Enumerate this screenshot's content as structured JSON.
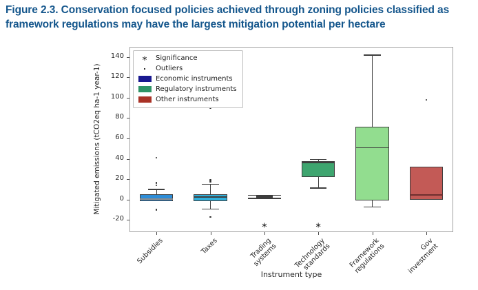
{
  "chart_data": {
    "type": "boxplot",
    "title": "Figure 2.3. Conservation focused policies achieved through zoning policies classified as framework regulations may have the largest mitigation potential per hectare",
    "title_color": "#14568c",
    "xlabel": "Instrument type",
    "ylabel": "Mitigated emissions (tCO2eq ha-1 year-1)",
    "ylim": [
      -32,
      150
    ],
    "yticks": [
      140,
      120,
      100,
      80,
      60,
      40,
      20,
      0,
      -20
    ],
    "categories": [
      "Subsidies",
      "Taxes",
      "Trading\nsystems",
      "Technology\nstandards",
      "Framework\nregulations",
      "Gov\ninvestment"
    ],
    "significance_y": -27,
    "boxes": [
      {
        "category": "Subsidies",
        "group": "Economic instruments",
        "fill": "#2d8dd8",
        "whisker_low": -1.5,
        "q1": -1.5,
        "median": 0.5,
        "q3": 5.5,
        "whisker_high": 10,
        "outliers": [
          41,
          16.5,
          14,
          -10
        ],
        "significance": false,
        "median_color": "#8c8c8c"
      },
      {
        "category": "Taxes",
        "group": "Economic instruments",
        "fill": "#2fb0dc",
        "whisker_low": -9,
        "q1": -1.5,
        "median": 2.5,
        "q3": 5.5,
        "whisker_high": 15,
        "outliers": [
          90,
          19,
          17.5,
          -17
        ],
        "significance": false
      },
      {
        "category": "Trading systems",
        "group": "Economic instruments",
        "fill": "#44494d",
        "whisker_low": 1.2,
        "q1": 1.8,
        "median": 2.8,
        "q3": 3.8,
        "whisker_high": 4.2,
        "outliers": [],
        "significance": true,
        "box_ratio": 0.3,
        "cap_ratio": 0.62
      },
      {
        "category": "Technology standards",
        "group": "Regulatory instruments",
        "fill": "#3ea56f",
        "whisker_low": 11.5,
        "q1": 22,
        "median": 36.5,
        "q3": 37.5,
        "whisker_high": 39.5,
        "outliers": [],
        "significance": true
      },
      {
        "category": "Framework regulations",
        "group": "Regulatory instruments",
        "fill": "#92dd8f",
        "whisker_low": -7,
        "q1": -1,
        "median": 51,
        "q3": 71.5,
        "whisker_high": 142,
        "outliers": [],
        "significance": false
      },
      {
        "category": "Gov investment",
        "group": "Other instruments",
        "fill": "#c35a56",
        "whisker_low": 0,
        "q1": 0,
        "median": 4.5,
        "q3": 32.5,
        "whisker_high": 32.5,
        "outliers": [
          98
        ],
        "significance": false,
        "median_color": "#6e2f2f"
      }
    ],
    "legend": {
      "items": [
        {
          "label": "Significance",
          "marker": "asterisk"
        },
        {
          "label": "Outliers",
          "marker": "dot"
        },
        {
          "label": "Economic instruments",
          "marker": "patch",
          "color": "#181890"
        },
        {
          "label": "Regulatory instruments",
          "marker": "patch",
          "color": "#2e9466"
        },
        {
          "label": "Other instruments",
          "marker": "patch",
          "color": "#a93226"
        }
      ]
    },
    "colors": {
      "axis_frame": "#a0a0a0",
      "box_edge": "#3d3d3d",
      "outlier": "#2b2b2b",
      "tick_text": "#262626"
    }
  }
}
